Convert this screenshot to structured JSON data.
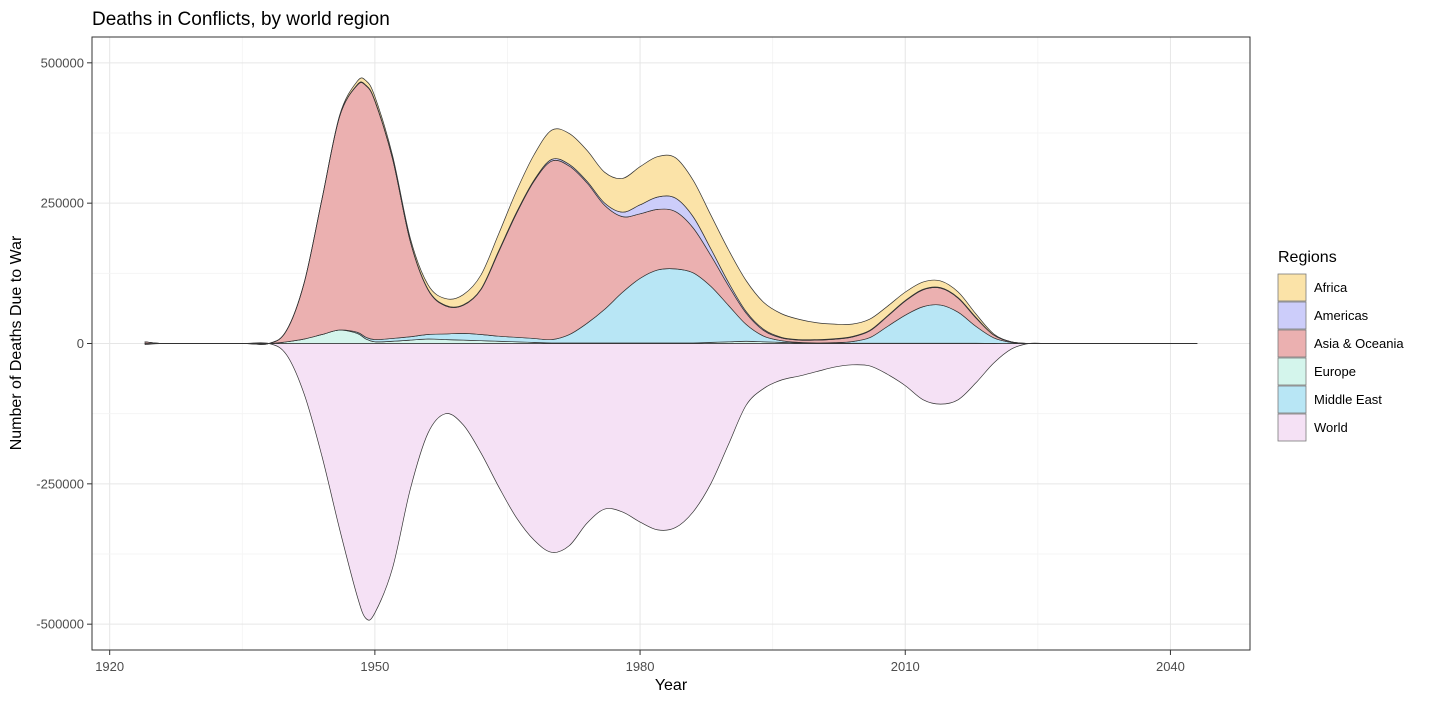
{
  "chart_data": {
    "type": "area",
    "title": "Deaths in Conflicts, by world region",
    "xlabel": "Year",
    "ylabel": "Number of Deaths Due to War",
    "xlim": [
      1918,
      2049
    ],
    "ylim": [
      -546000,
      546000
    ],
    "x_ticks": [
      1920,
      1950,
      1980,
      2010,
      2040
    ],
    "y_ticks": [
      500000,
      250000,
      0,
      -250000,
      -500000
    ],
    "y_tick_labels": [
      "500000",
      "250000",
      "0",
      "-250000",
      "-500000"
    ],
    "grid": true,
    "legend": {
      "title": "Regions",
      "position": "right"
    },
    "x": [
      1924,
      1926,
      1930,
      1935,
      1938,
      1940,
      1942,
      1944,
      1946,
      1948,
      1949,
      1950,
      1952,
      1954,
      1956,
      1958,
      1960,
      1962,
      1964,
      1966,
      1968,
      1970,
      1972,
      1974,
      1976,
      1978,
      1980,
      1982,
      1984,
      1986,
      1988,
      1990,
      1992,
      1994,
      1996,
      1998,
      2000,
      2002,
      2004,
      2006,
      2008,
      2010,
      2012,
      2014,
      2016,
      2018,
      2020,
      2022,
      2024,
      2026,
      2030,
      2035,
      2040,
      2043
    ],
    "series": [
      {
        "name": "World",
        "color": "#f5e1f5",
        "values": [
          -2000,
          0,
          0,
          0,
          0,
          -20000,
          -90000,
          -200000,
          -330000,
          -450000,
          -490000,
          -480000,
          -400000,
          -260000,
          -160000,
          -125000,
          -145000,
          -195000,
          -255000,
          -310000,
          -350000,
          -372000,
          -360000,
          -320000,
          -295000,
          -300000,
          -318000,
          -332000,
          -328000,
          -300000,
          -250000,
          -180000,
          -110000,
          -80000,
          -65000,
          -58000,
          -50000,
          -42000,
          -38000,
          -40000,
          -55000,
          -75000,
          -100000,
          -108000,
          -100000,
          -70000,
          -35000,
          -10000,
          0,
          0,
          0,
          0,
          0,
          0
        ]
      },
      {
        "name": "Europe",
        "color": "#d4f5ec",
        "values": [
          0,
          0,
          0,
          0,
          0,
          3000,
          8000,
          16000,
          24000,
          18000,
          8000,
          3000,
          4000,
          6000,
          8000,
          7000,
          6000,
          5000,
          4000,
          3000,
          2000,
          1000,
          1000,
          1000,
          1000,
          1000,
          1000,
          1000,
          1000,
          1000,
          2000,
          3000,
          4000,
          3000,
          2000,
          1000,
          500,
          500,
          500,
          500,
          500,
          500,
          500,
          500,
          500,
          500,
          200,
          0,
          0,
          0,
          0,
          0,
          0,
          0
        ]
      },
      {
        "name": "Middle East",
        "color": "#b8e6f5",
        "values": [
          0,
          0,
          0,
          0,
          0,
          0,
          0,
          0,
          0,
          2000,
          3000,
          4000,
          5000,
          6000,
          8000,
          10000,
          12000,
          11000,
          9000,
          8000,
          7000,
          6000,
          15000,
          35000,
          60000,
          90000,
          115000,
          130000,
          132000,
          125000,
          100000,
          65000,
          30000,
          10000,
          3000,
          1000,
          500,
          1000,
          3000,
          10000,
          30000,
          50000,
          65000,
          68000,
          55000,
          30000,
          10000,
          2000,
          0,
          0,
          0,
          0,
          0,
          0
        ]
      },
      {
        "name": "Asia & Oceania",
        "color": "#ebb0b0",
        "values": [
          3000,
          0,
          0,
          0,
          0,
          20000,
          100000,
          240000,
          380000,
          440000,
          448000,
          425000,
          320000,
          170000,
          80000,
          50000,
          50000,
          80000,
          150000,
          220000,
          280000,
          318000,
          300000,
          250000,
          185000,
          135000,
          115000,
          108000,
          102000,
          80000,
          55000,
          35000,
          20000,
          10000,
          5000,
          4000,
          5000,
          6000,
          8000,
          12000,
          18000,
          25000,
          30000,
          30000,
          25000,
          15000,
          5000,
          1000,
          0,
          0,
          0,
          0,
          0,
          0
        ]
      },
      {
        "name": "Americas",
        "color": "#cccdfa",
        "values": [
          0,
          0,
          0,
          0,
          0,
          0,
          0,
          0,
          0,
          1000,
          1000,
          1000,
          1000,
          1000,
          1000,
          1000,
          1000,
          1000,
          2000,
          2000,
          2000,
          3000,
          3000,
          3000,
          4000,
          8000,
          16000,
          22000,
          24000,
          20000,
          12000,
          6000,
          3000,
          2000,
          1000,
          1000,
          1000,
          1000,
          1000,
          1000,
          1000,
          1000,
          1000,
          1000,
          1000,
          1000,
          0,
          0,
          0,
          0,
          0,
          0,
          0,
          0
        ]
      },
      {
        "name": "Africa",
        "color": "#fbe3a8",
        "values": [
          0,
          0,
          0,
          0,
          0,
          0,
          0,
          0,
          2000,
          6000,
          8000,
          7000,
          5000,
          5000,
          8000,
          12000,
          18000,
          25000,
          30000,
          38000,
          45000,
          52000,
          55000,
          55000,
          55000,
          60000,
          68000,
          72000,
          72000,
          65000,
          60000,
          58000,
          55000,
          48000,
          42000,
          36000,
          30000,
          26000,
          22000,
          20000,
          17000,
          15000,
          13000,
          12000,
          10000,
          6000,
          2000,
          0,
          0,
          0,
          0,
          0,
          0,
          0
        ]
      }
    ]
  }
}
